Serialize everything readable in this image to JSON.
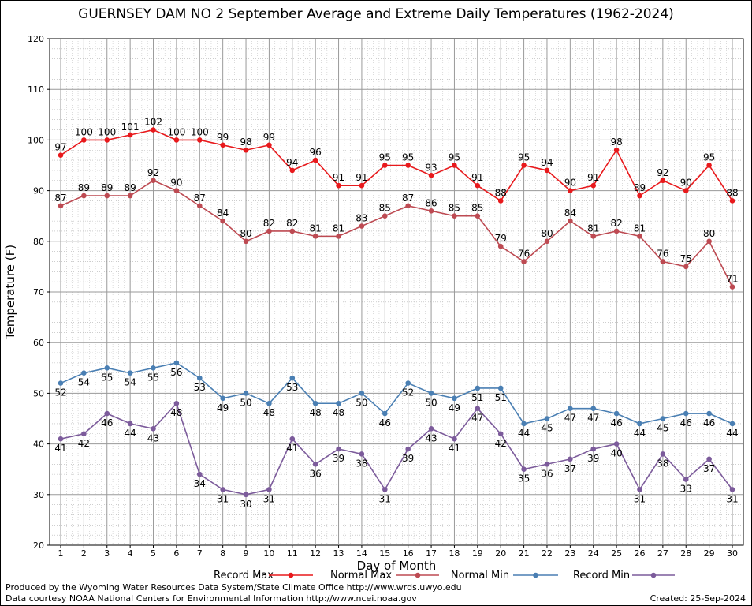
{
  "chart_data": {
    "type": "line",
    "title": "GUERNSEY DAM NO 2 September Average and Extreme Daily Temperatures (1962-2024)",
    "xlabel": "Day of Month",
    "ylabel": "Temperature (F)",
    "ylim": [
      20,
      120
    ],
    "yticks": [
      20,
      30,
      40,
      50,
      60,
      70,
      80,
      90,
      100,
      110,
      120
    ],
    "grid": true,
    "legend_position": "bottom",
    "x": [
      1,
      2,
      3,
      4,
      5,
      6,
      7,
      8,
      9,
      10,
      11,
      12,
      13,
      14,
      15,
      16,
      17,
      18,
      19,
      20,
      21,
      22,
      23,
      24,
      25,
      26,
      27,
      28,
      29,
      30
    ],
    "series": [
      {
        "name": "Record Max",
        "color": "#e8191c",
        "values": [
          97,
          100,
          100,
          101,
          102,
          100,
          100,
          99,
          98,
          99,
          94,
          96,
          91,
          91,
          95,
          95,
          93,
          95,
          91,
          88,
          95,
          94,
          90,
          91,
          98,
          89,
          92,
          90,
          95,
          88
        ]
      },
      {
        "name": "Normal Max",
        "color": "#bd4a52",
        "values": [
          87,
          89,
          89,
          89,
          92,
          90,
          87,
          84,
          80,
          82,
          82,
          81,
          81,
          83,
          85,
          87,
          86,
          85,
          85,
          79,
          76,
          80,
          84,
          81,
          82,
          81,
          76,
          75,
          80,
          71
        ]
      },
      {
        "name": "Normal Min",
        "color": "#4a7fb3",
        "values": [
          52,
          54,
          55,
          54,
          55,
          56,
          53,
          49,
          50,
          48,
          53,
          48,
          48,
          50,
          46,
          52,
          50,
          49,
          51,
          51,
          44,
          45,
          47,
          47,
          46,
          44,
          45,
          46,
          46,
          44
        ]
      },
      {
        "name": "Record Min",
        "color": "#7c5b9b",
        "values": [
          41,
          42,
          46,
          44,
          43,
          48,
          34,
          31,
          30,
          31,
          41,
          36,
          39,
          38,
          31,
          39,
          43,
          41,
          47,
          42,
          35,
          36,
          37,
          39,
          40,
          31,
          38,
          33,
          37,
          31
        ]
      }
    ]
  },
  "footer": {
    "credit_1": "Produced by the Wyoming Water Resources Data System/State Climate Office http://www.wrds.uwyo.edu",
    "credit_2": "Data courtesy NOAA National Centers for Environmental Information http://www.ncei.noaa.gov",
    "created": "Created:  25-Sep-2024"
  }
}
